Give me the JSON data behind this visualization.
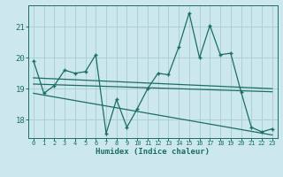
{
  "xlabel": "Humidex (Indice chaleur)",
  "bg_color": "#cde8ec",
  "grid_color": "#aad0d6",
  "line_color": "#1a6e64",
  "xlim": [
    -0.5,
    23.5
  ],
  "ylim": [
    17.4,
    21.7
  ],
  "yticks": [
    18,
    19,
    20,
    21
  ],
  "xticks": [
    0,
    1,
    2,
    3,
    4,
    5,
    6,
    7,
    8,
    9,
    10,
    11,
    12,
    13,
    14,
    15,
    16,
    17,
    18,
    19,
    20,
    21,
    22,
    23
  ],
  "data_x": [
    0,
    1,
    2,
    3,
    4,
    5,
    6,
    7,
    8,
    9,
    10,
    11,
    12,
    13,
    14,
    15,
    16,
    17,
    18,
    19,
    20,
    21,
    22,
    23
  ],
  "data_y": [
    19.9,
    18.85,
    19.1,
    19.6,
    19.5,
    19.55,
    20.1,
    17.55,
    18.65,
    17.75,
    18.35,
    19.0,
    19.5,
    19.45,
    20.35,
    21.45,
    20.0,
    21.05,
    20.1,
    20.15,
    18.9,
    17.75,
    17.6,
    17.7
  ],
  "trend1_x": [
    0,
    23
  ],
  "trend1_y": [
    19.15,
    18.9
  ],
  "trend2_x": [
    0,
    23
  ],
  "trend2_y": [
    18.85,
    17.5
  ],
  "trend3_x": [
    0,
    23
  ],
  "trend3_y": [
    19.35,
    19.0
  ]
}
